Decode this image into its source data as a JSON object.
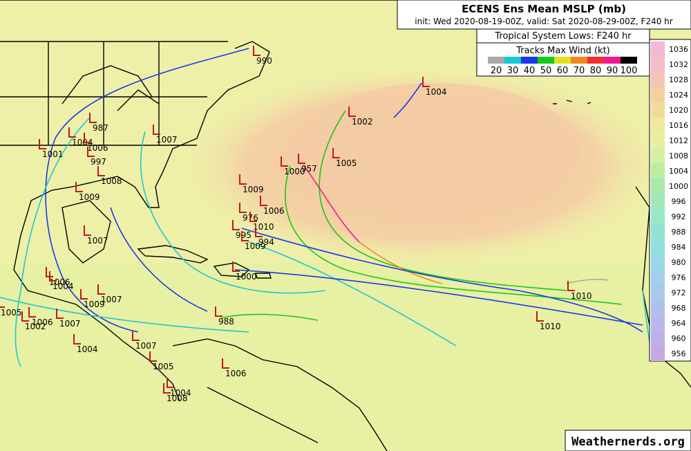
{
  "header": {
    "title": "ECENS Ens Mean MSLP (mb)",
    "subtitle": "init: Wed 2020-08-19-00Z, valid: Sat 2020-08-29-00Z, F240 hr"
  },
  "tracks_legend": {
    "title": "Tropical System Lows: F240 hr",
    "subtitle": "Tracks Max Wind (kt)",
    "items": [
      {
        "label": "20",
        "color": "#a8a8a8"
      },
      {
        "label": "30",
        "color": "#18c8d0"
      },
      {
        "label": "40",
        "color": "#1838e8"
      },
      {
        "label": "50",
        "color": "#18c818"
      },
      {
        "label": "60",
        "color": "#e0e020"
      },
      {
        "label": "70",
        "color": "#f08820"
      },
      {
        "label": "80",
        "color": "#f03030"
      },
      {
        "label": "90",
        "color": "#f01890"
      },
      {
        "label": "100",
        "color": "#000000"
      }
    ]
  },
  "colorbar": {
    "items": [
      {
        "label": "1036",
        "color": "#f2b8d8"
      },
      {
        "label": "1032",
        "color": "#f4bcc8"
      },
      {
        "label": "1028",
        "color": "#f4c4b0"
      },
      {
        "label": "1024",
        "color": "#f4d0a0"
      },
      {
        "label": "1020",
        "color": "#f2dc9c"
      },
      {
        "label": "1016",
        "color": "#eeea9c"
      },
      {
        "label": "1012",
        "color": "#e8f0a0"
      },
      {
        "label": "1008",
        "color": "#d4f0a0"
      },
      {
        "label": "1004",
        "color": "#bcecA0"
      },
      {
        "label": "1000",
        "color": "#a8e8a8"
      },
      {
        "label": "996",
        "color": "#a0e8b8"
      },
      {
        "label": "992",
        "color": "#98e8c8"
      },
      {
        "label": "988",
        "color": "#90e4d4"
      },
      {
        "label": "984",
        "color": "#90e0e0"
      },
      {
        "label": "980",
        "color": "#98d8e8"
      },
      {
        "label": "976",
        "color": "#a0d0ec"
      },
      {
        "label": "972",
        "color": "#a8c8ec"
      },
      {
        "label": "968",
        "color": "#b0c0ec"
      },
      {
        "label": "964",
        "color": "#b8b8ec"
      },
      {
        "label": "960",
        "color": "#c0b0e8"
      },
      {
        "label": "956",
        "color": "#c8a8e4"
      }
    ]
  },
  "lows": [
    "990",
    "1004",
    "1002",
    "987",
    "1007",
    "1004",
    "1006",
    "1001",
    "997",
    "1005",
    "1000",
    "957",
    "1008",
    "1009",
    "1009",
    "1006",
    "976",
    "1010",
    "995",
    "994",
    "1009",
    "1007",
    "1000",
    "1006",
    "1004",
    "1007",
    "1009",
    "1010",
    "988",
    "1010",
    "1007",
    "1004",
    "1005",
    "1006",
    "1004",
    "1008",
    "1005",
    "1006",
    "1007",
    "1002"
  ],
  "watermark": "Weathernerds.org"
}
